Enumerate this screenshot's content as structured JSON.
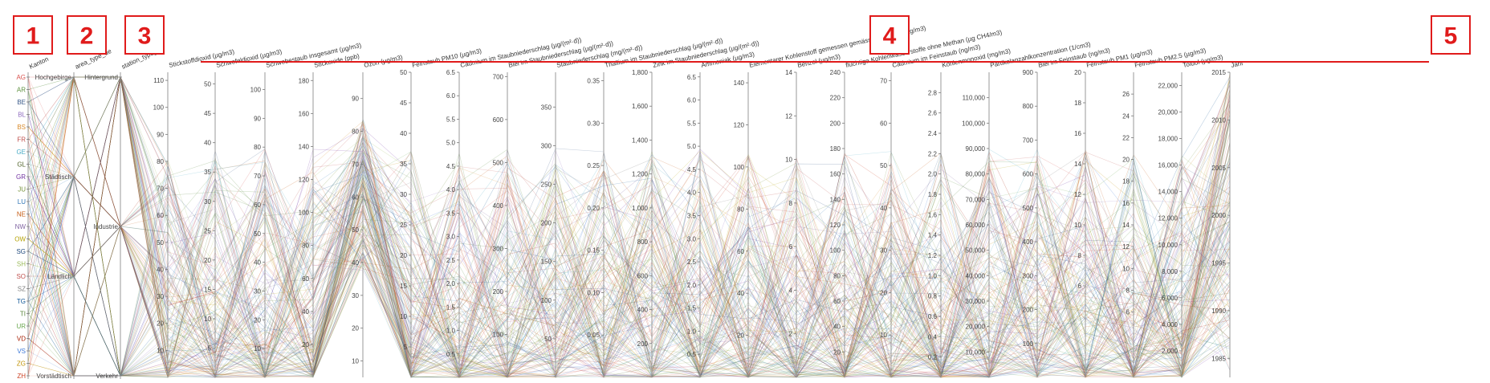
{
  "markers": [
    "1",
    "2",
    "3",
    "4",
    "5"
  ],
  "colors": {
    "marker": "#e01b1b",
    "axis": "#9a9a9a",
    "kanton": [
      "#d9534f",
      "#5b8f3c",
      "#3a5a8a",
      "#8e6bbf",
      "#d98b2b",
      "#c0504d",
      "#4bacc6",
      "#4f6228",
      "#7030a0",
      "#77933c",
      "#2e75b6",
      "#c55a11",
      "#8064a2",
      "#b3a000",
      "#1f497d",
      "#9bbb59",
      "#c0504d",
      "#7f7f7f",
      "#0b5394",
      "#548235",
      "#6aa84f",
      "#a61c00",
      "#3c78d8",
      "#bf9000",
      "#cc4125"
    ]
  },
  "chart_data": {
    "type": "parallel_coordinates",
    "categorical_axes": [
      {
        "name": "Kanton",
        "categories": [
          "AG",
          "AR",
          "BE",
          "BL",
          "BS",
          "FR",
          "GE",
          "GL",
          "GR",
          "JU",
          "LU",
          "NE",
          "NW",
          "OW",
          "SG",
          "SH",
          "SO",
          "SZ",
          "TG",
          "TI",
          "UR",
          "VD",
          "VS",
          "ZG",
          "ZH"
        ]
      },
      {
        "name": "area_type_de",
        "categories": [
          "Hochgebirge",
          "Städtisch",
          "Ländlich",
          "Vorstädtisch"
        ]
      },
      {
        "name": "station_type_de",
        "categories": [
          "Hintergrund",
          "Industrie",
          "Verkehr"
        ]
      }
    ],
    "numeric_axes": [
      {
        "name": "Stickstoffdioxid (µg/m3)",
        "ylim": [
          0,
          113
        ],
        "ticks": [
          "10",
          "20",
          "30",
          "40",
          "50",
          "60",
          "70",
          "80",
          "90",
          "100",
          "110"
        ]
      },
      {
        "name": "Schwefeldioxid (µg/m3)",
        "ylim": [
          0,
          52
        ],
        "ticks": [
          "5",
          "10",
          "15",
          "20",
          "25",
          "30",
          "35",
          "40",
          "45",
          "50"
        ]
      },
      {
        "name": "Schwebestaub insgesamt (µg/m3)",
        "ylim": [
          0,
          106
        ],
        "ticks": [
          "10",
          "20",
          "30",
          "40",
          "50",
          "60",
          "70",
          "80",
          "90",
          "100"
        ]
      },
      {
        "name": "Stickoxide (ppb)",
        "ylim": [
          0,
          185
        ],
        "ticks": [
          "20",
          "40",
          "60",
          "80",
          "100",
          "120",
          "140",
          "160",
          "180"
        ]
      },
      {
        "name": "Ozon (µg/m3)",
        "ylim": [
          5,
          98
        ],
        "ticks": [
          "10",
          "20",
          "30",
          "40",
          "50",
          "60",
          "70",
          "80",
          "90"
        ]
      },
      {
        "name": "Feinstaub PM10 (µg/m3)",
        "ylim": [
          0,
          50
        ],
        "ticks": [
          "5",
          "10",
          "15",
          "20",
          "25",
          "30",
          "35",
          "40",
          "45",
          "50"
        ]
      },
      {
        "name": "Cadmium im Staubniederschlag (µg/(m²·d))",
        "ylim": [
          0,
          6.5
        ],
        "ticks": [
          "0.5",
          "1.0",
          "1.5",
          "2.0",
          "2.5",
          "3.0",
          "3.5",
          "4.0",
          "4.5",
          "5.0",
          "5.5",
          "6.0",
          "6.5"
        ]
      },
      {
        "name": "Blei im Staubniederschlag (µg/(m²·d))",
        "ylim": [
          0,
          710
        ],
        "ticks": [
          "100",
          "200",
          "300",
          "400",
          "500",
          "600",
          "700"
        ]
      },
      {
        "name": "Staubniederschlag (mg/(m²·d))",
        "ylim": [
          0,
          395
        ],
        "ticks": [
          "50",
          "100",
          "150",
          "200",
          "250",
          "300",
          "350"
        ]
      },
      {
        "name": "Thallium im Staubniederschlag (µg/(m²·d))",
        "ylim": [
          0,
          0.36
        ],
        "ticks": [
          "0.05",
          "0.10",
          "0.15",
          "0.20",
          "0.25",
          "0.30",
          "0.35"
        ]
      },
      {
        "name": "Zink im Staubniederschlag (µg/(m²·d))",
        "ylim": [
          0,
          1800
        ],
        "ticks": [
          "200",
          "400",
          "600",
          "800",
          "1,000",
          "1,200",
          "1,400",
          "1,600",
          "1,800"
        ]
      },
      {
        "name": "Ammoniak (µg/m3)",
        "ylim": [
          0,
          6.6
        ],
        "ticks": [
          "0.5",
          "1.0",
          "1.5",
          "2.0",
          "2.5",
          "3.0",
          "3.5",
          "4.0",
          "4.5",
          "5.0",
          "5.5",
          "6.0",
          "6.5"
        ]
      },
      {
        "name": "Elementarer Kohlenstoff gemessen gemäss EUSAAR2 (µg/m3)",
        "ylim": [
          0,
          145
        ],
        "ticks": [
          "20",
          "40",
          "60",
          "80",
          "100",
          "120",
          "140"
        ]
      },
      {
        "name": "Benzol (µg/m3)",
        "ylim": [
          0,
          14
        ],
        "ticks": [
          "2",
          "4",
          "6",
          "8",
          "10",
          "12",
          "14"
        ]
      },
      {
        "name": "flüchtige Kohlenwasserstoffe ohne Methan (µg CH4/m3)",
        "ylim": [
          0,
          240
        ],
        "ticks": [
          "20",
          "40",
          "60",
          "80",
          "100",
          "120",
          "140",
          "160",
          "180",
          "200",
          "220",
          "240"
        ]
      },
      {
        "name": "Cadmium im Feinstaub (ng/m3)",
        "ylim": [
          0,
          72
        ],
        "ticks": [
          "10",
          "20",
          "30",
          "40",
          "50",
          "60",
          "70"
        ]
      },
      {
        "name": "Kohlenmonoxid (mg/m3)",
        "ylim": [
          0,
          3.0
        ],
        "ticks": [
          "0.2",
          "0.4",
          "0.6",
          "0.8",
          "1.0",
          "1.2",
          "1.4",
          "1.6",
          "1.8",
          "2.0",
          "2.2",
          "2.4",
          "2.6",
          "2.8"
        ]
      },
      {
        "name": "Partikelanzahlkonzentration (1/cm3)",
        "ylim": [
          0,
          120000
        ],
        "ticks": [
          "10,000",
          "20,000",
          "30,000",
          "40,000",
          "50,000",
          "60,000",
          "70,000",
          "80,000",
          "90,000",
          "100,000",
          "110,000"
        ]
      },
      {
        "name": "Blei im Feinstaub (ng/m3)",
        "ylim": [
          0,
          900
        ],
        "ticks": [
          "100",
          "200",
          "300",
          "400",
          "500",
          "600",
          "700",
          "800",
          "900"
        ]
      },
      {
        "name": "Feinstaub PM1 (µg/m3)",
        "ylim": [
          0,
          20
        ],
        "ticks": [
          "6",
          "8",
          "10",
          "12",
          "14",
          "16",
          "18",
          "20"
        ]
      },
      {
        "name": "Feinstaub PM2.5 (µg/m3)",
        "ylim": [
          0,
          28
        ],
        "ticks": [
          "6",
          "8",
          "10",
          "12",
          "14",
          "16",
          "18",
          "20",
          "22",
          "24",
          "26"
        ]
      },
      {
        "name": "Toluol (µg/m3)",
        "ylim": [
          0,
          23000
        ],
        "ticks": [
          "2,000",
          "4,000",
          "6,000",
          "8,000",
          "10,000",
          "12,000",
          "14,000",
          "16,000",
          "18,000",
          "20,000",
          "22,000"
        ]
      },
      {
        "name": "Jahr",
        "ylim": [
          1983,
          2015
        ],
        "ticks": [
          "1985",
          "1990",
          "1995",
          "2000",
          "2005",
          "2010",
          "2015"
        ]
      }
    ],
    "lines": "dense polylines (several hundred station-year records), colored by Kanton; values not individually readable"
  }
}
